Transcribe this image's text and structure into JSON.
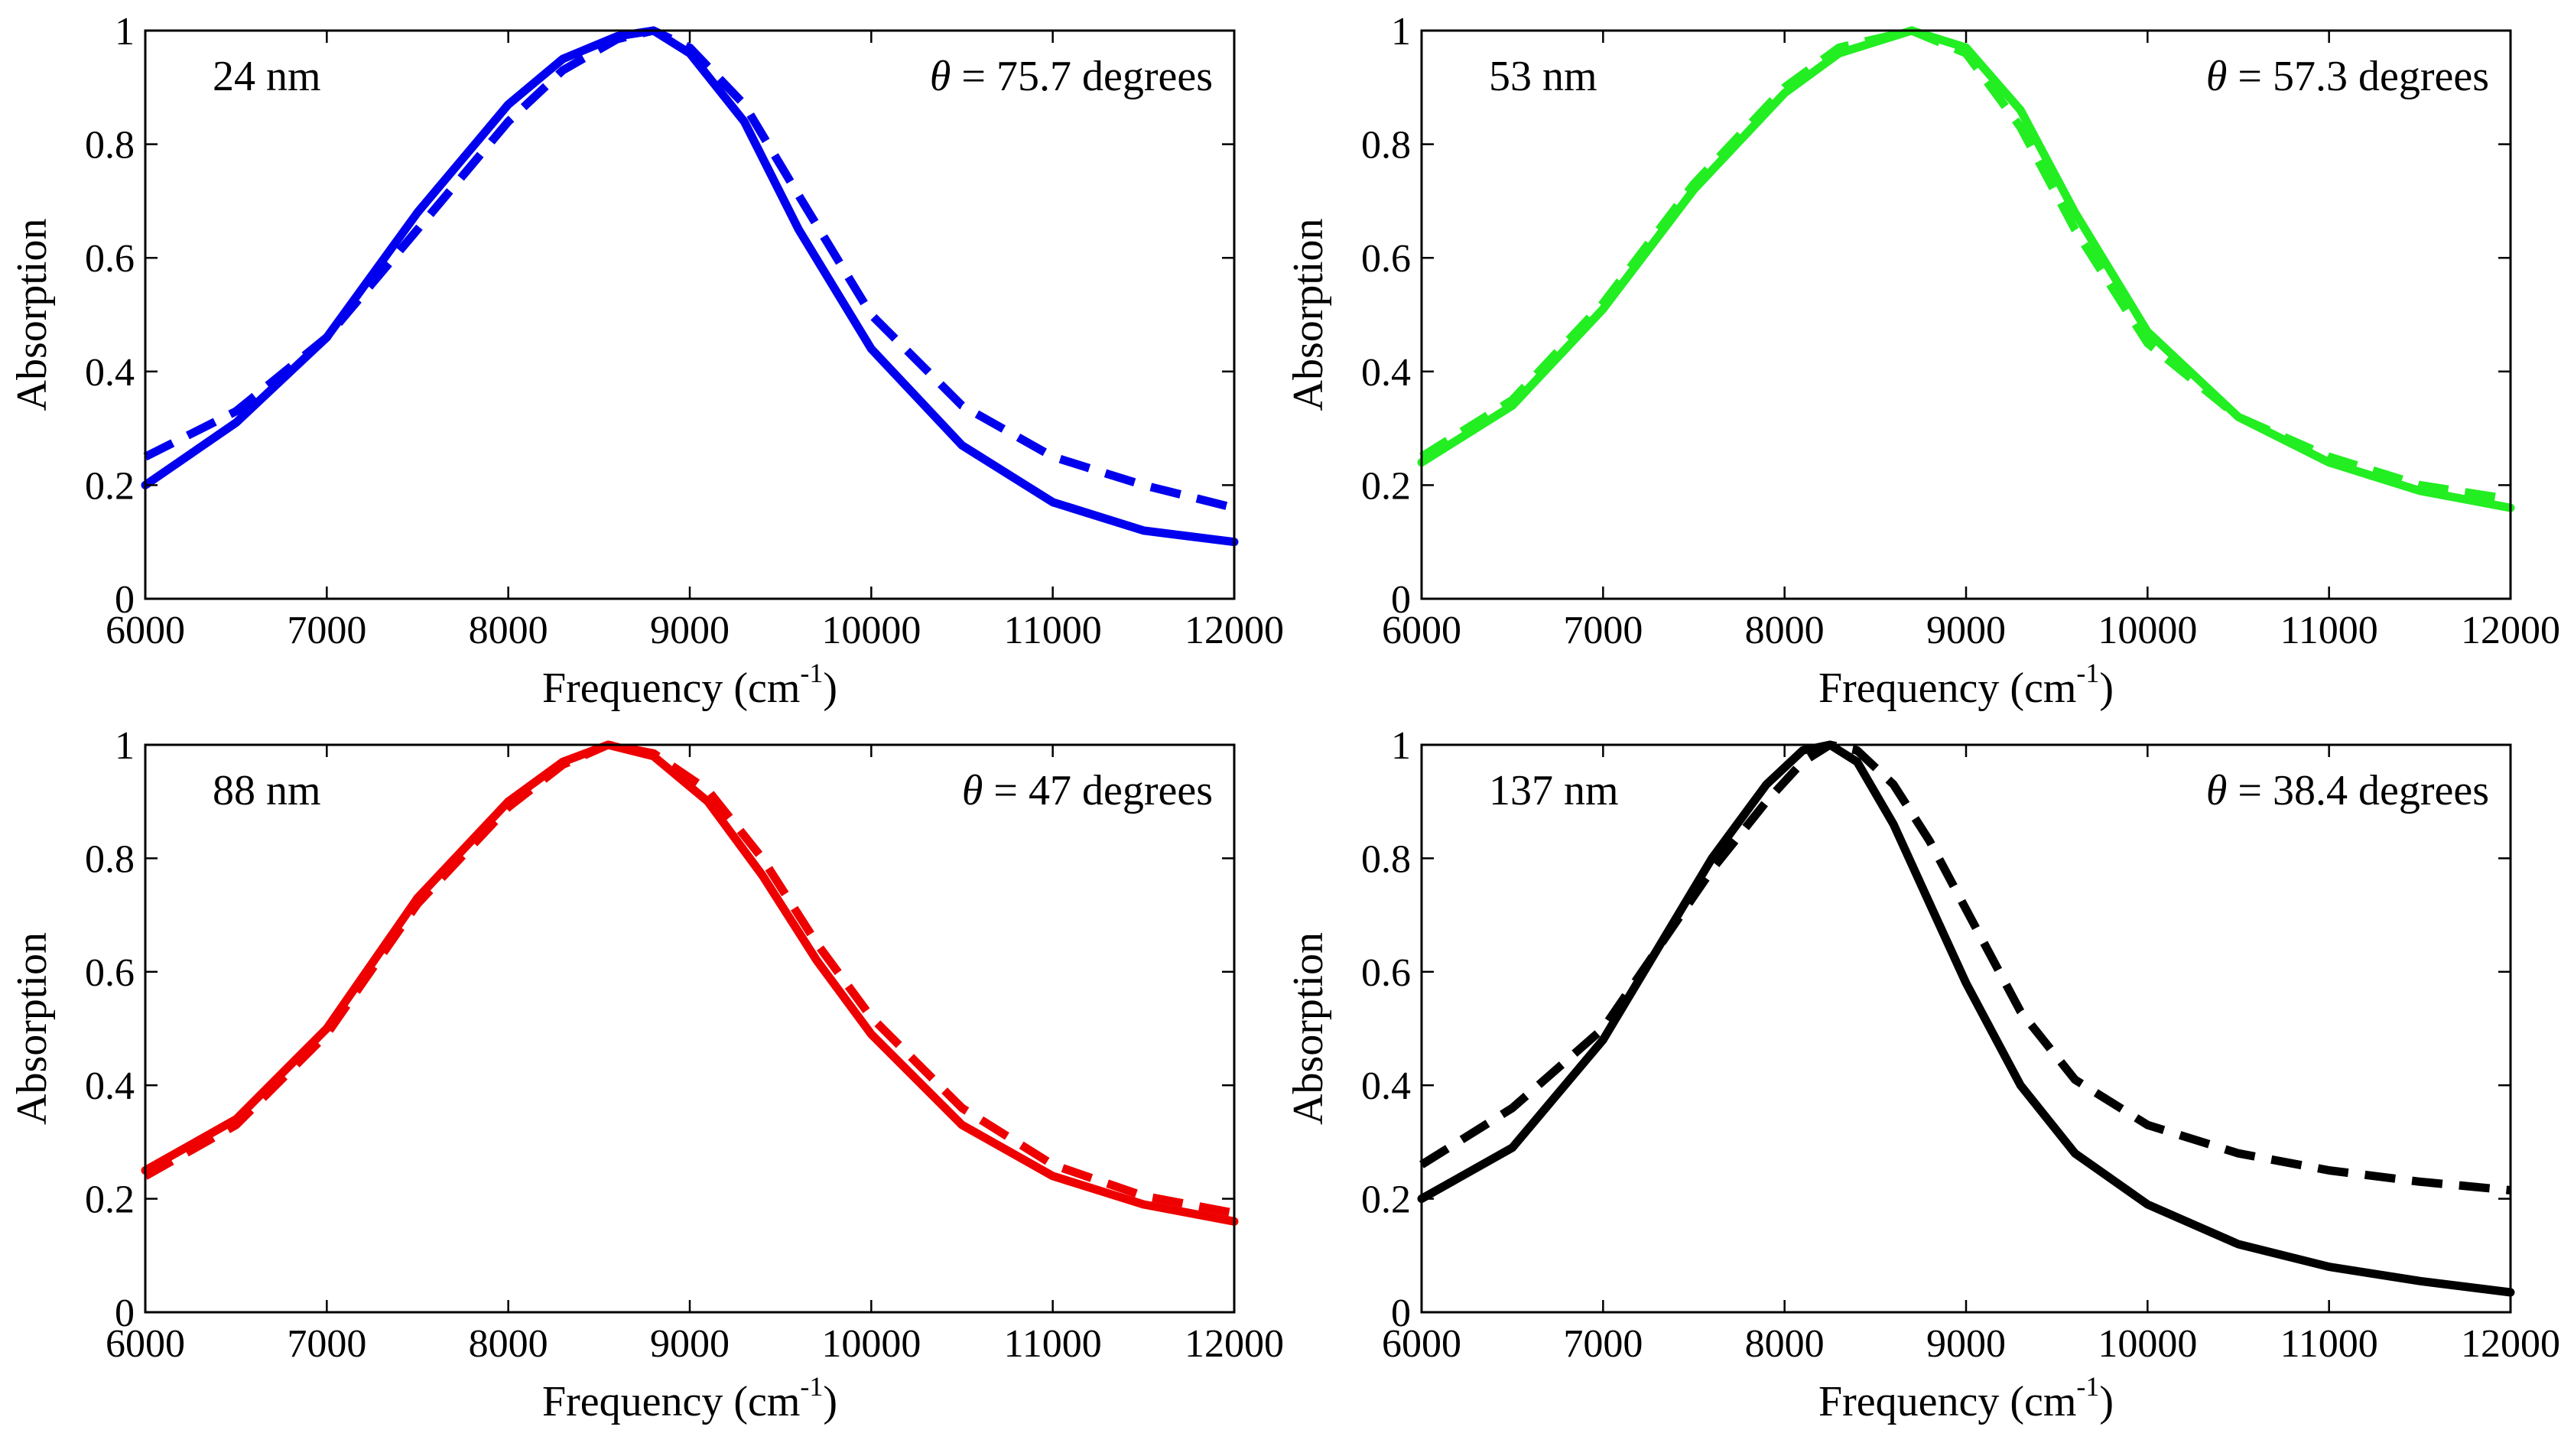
{
  "chart_data": [
    {
      "type": "line",
      "size_label": "24 nm",
      "angle_value": "75.7",
      "angle_unit": "degrees",
      "theta_symbol": "θ",
      "equals": "=",
      "color": "#0000ee",
      "xlabel_main": "Frequency (cm",
      "xlabel_sup": "-1",
      "xlabel_close": ")",
      "ylabel": "Absorption",
      "xlim": [
        6000,
        12000
      ],
      "ylim": [
        0,
        1
      ],
      "xticks": [
        "6000",
        "7000",
        "8000",
        "9000",
        "10000",
        "11000",
        "12000"
      ],
      "yticks": [
        "0",
        "0.2",
        "0.4",
        "0.6",
        "0.8",
        "1"
      ],
      "x": [
        6000,
        6500,
        7000,
        7500,
        8000,
        8300,
        8600,
        8800,
        9000,
        9300,
        9600,
        10000,
        10500,
        11000,
        11500,
        12000
      ],
      "series": [
        {
          "name": "solid",
          "style": "solid",
          "values": [
            0.2,
            0.31,
            0.46,
            0.68,
            0.87,
            0.95,
            0.99,
            1.0,
            0.96,
            0.84,
            0.65,
            0.44,
            0.27,
            0.17,
            0.12,
            0.1
          ]
        },
        {
          "name": "dashed",
          "style": "dashed",
          "values": [
            0.25,
            0.33,
            0.46,
            0.65,
            0.84,
            0.93,
            0.985,
            1.0,
            0.97,
            0.87,
            0.71,
            0.5,
            0.34,
            0.25,
            0.2,
            0.16
          ]
        }
      ]
    },
    {
      "type": "line",
      "size_label": "53 nm",
      "angle_value": "57.3",
      "angle_unit": "degrees",
      "theta_symbol": "θ",
      "equals": "=",
      "color": "#22ee22",
      "xlabel_main": "Frequency (cm",
      "xlabel_sup": "-1",
      "xlabel_close": ")",
      "ylabel": "Absorption",
      "xlim": [
        6000,
        12000
      ],
      "ylim": [
        0,
        1
      ],
      "xticks": [
        "6000",
        "7000",
        "8000",
        "9000",
        "10000",
        "11000",
        "12000"
      ],
      "yticks": [
        "0",
        "0.2",
        "0.4",
        "0.6",
        "0.8",
        "1"
      ],
      "x": [
        6000,
        6500,
        7000,
        7500,
        8000,
        8300,
        8700,
        9000,
        9300,
        9600,
        10000,
        10500,
        11000,
        11500,
        12000
      ],
      "series": [
        {
          "name": "solid",
          "style": "solid",
          "values": [
            0.24,
            0.34,
            0.51,
            0.72,
            0.89,
            0.96,
            1.0,
            0.97,
            0.86,
            0.68,
            0.47,
            0.32,
            0.24,
            0.19,
            0.16
          ]
        },
        {
          "name": "dashed",
          "style": "dashed",
          "values": [
            0.25,
            0.35,
            0.52,
            0.73,
            0.9,
            0.97,
            1.0,
            0.96,
            0.83,
            0.65,
            0.45,
            0.32,
            0.25,
            0.2,
            0.175
          ]
        }
      ]
    },
    {
      "type": "line",
      "size_label": "88 nm",
      "angle_value": "47",
      "angle_unit": "degrees",
      "theta_symbol": "θ",
      "equals": "=",
      "color": "#ee0000",
      "xlabel_main": "Frequency (cm",
      "xlabel_sup": "-1",
      "xlabel_close": ")",
      "ylabel": "Absorption",
      "xlim": [
        6000,
        12000
      ],
      "ylim": [
        0,
        1
      ],
      "xticks": [
        "6000",
        "7000",
        "8000",
        "9000",
        "10000",
        "11000",
        "12000"
      ],
      "yticks": [
        "0",
        "0.2",
        "0.4",
        "0.6",
        "0.8",
        "1"
      ],
      "x": [
        6000,
        6500,
        7000,
        7500,
        8000,
        8300,
        8550,
        8800,
        9100,
        9400,
        9700,
        10000,
        10500,
        11000,
        11500,
        12000
      ],
      "series": [
        {
          "name": "solid",
          "style": "solid",
          "values": [
            0.25,
            0.34,
            0.5,
            0.73,
            0.9,
            0.97,
            1.0,
            0.98,
            0.9,
            0.77,
            0.62,
            0.49,
            0.33,
            0.24,
            0.19,
            0.16
          ]
        },
        {
          "name": "dashed",
          "style": "dashed",
          "values": [
            0.24,
            0.33,
            0.49,
            0.72,
            0.89,
            0.965,
            1.0,
            0.985,
            0.92,
            0.8,
            0.65,
            0.52,
            0.36,
            0.26,
            0.205,
            0.175
          ]
        }
      ]
    },
    {
      "type": "line",
      "size_label": "137 nm",
      "angle_value": "38.4",
      "angle_unit": "degrees",
      "theta_symbol": "θ",
      "equals": "=",
      "color": "#000000",
      "xlabel_main": "Frequency (cm",
      "xlabel_sup": "-1",
      "xlabel_close": ")",
      "ylabel": "Absorption",
      "xlim": [
        6000,
        12000
      ],
      "ylim": [
        0,
        1
      ],
      "xticks": [
        "6000",
        "7000",
        "8000",
        "9000",
        "10000",
        "11000",
        "12000"
      ],
      "yticks": [
        "0",
        "0.2",
        "0.4",
        "0.6",
        "0.8",
        "1"
      ],
      "x": [
        6000,
        6500,
        7000,
        7300,
        7600,
        7900,
        8100,
        8250,
        8400,
        8600,
        8800,
        9000,
        9300,
        9600,
        10000,
        10500,
        11000,
        11500,
        12000
      ],
      "series": [
        {
          "name": "solid",
          "style": "solid",
          "values": [
            0.2,
            0.29,
            0.48,
            0.64,
            0.8,
            0.93,
            0.99,
            1.0,
            0.97,
            0.86,
            0.72,
            0.58,
            0.4,
            0.28,
            0.19,
            0.12,
            0.08,
            0.055,
            0.035
          ]
        },
        {
          "name": "dashed",
          "style": "dashed",
          "values": [
            0.26,
            0.36,
            0.5,
            0.64,
            0.78,
            0.9,
            0.97,
            1.0,
            0.99,
            0.93,
            0.83,
            0.71,
            0.53,
            0.41,
            0.33,
            0.28,
            0.25,
            0.23,
            0.215
          ]
        }
      ]
    }
  ]
}
